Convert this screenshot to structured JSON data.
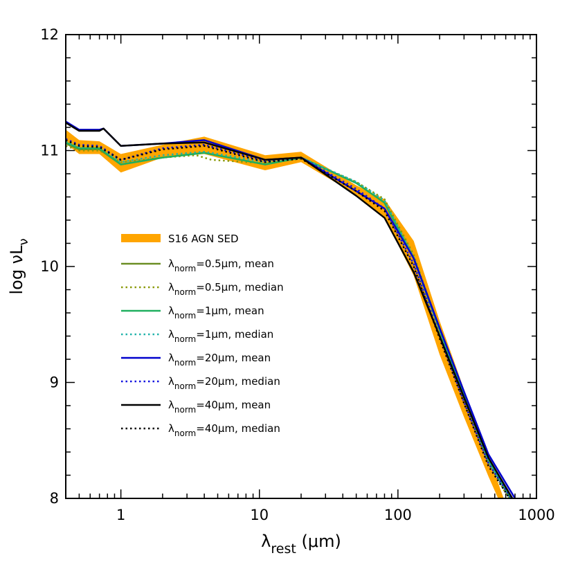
{
  "chart_data": {
    "type": "line",
    "xscale": "log",
    "xlim": [
      0.4,
      1000
    ],
    "ylim": [
      8,
      12
    ],
    "x_ticks": [
      {
        "value": 1,
        "label": "1"
      },
      {
        "value": 10,
        "label": "10"
      },
      {
        "value": 100,
        "label": "100"
      },
      {
        "value": 1000,
        "label": "1000"
      }
    ],
    "y_ticks": [
      {
        "value": 8,
        "label": "8"
      },
      {
        "value": 9,
        "label": "9"
      },
      {
        "value": 10,
        "label": "10"
      },
      {
        "value": 11,
        "label": "11"
      },
      {
        "value": 12,
        "label": "12"
      }
    ],
    "xlabel": {
      "main": "λ",
      "sub": "rest",
      "unit": " (μm)"
    },
    "ylabel": {
      "main": "log νL",
      "sub": "ν"
    },
    "legend_position": "center-left",
    "band": {
      "name": "S16 AGN SED",
      "color": "#FFA500",
      "x": [
        0.4,
        0.5,
        0.7,
        1.0,
        2.0,
        4.0,
        11.0,
        20.0,
        50.0,
        80.0,
        130.0,
        200.0,
        300.0,
        450.0,
        600.0
      ],
      "upper": [
        11.18,
        11.09,
        11.08,
        10.97,
        11.05,
        11.12,
        10.96,
        10.99,
        10.7,
        10.58,
        10.22,
        9.53,
        8.94,
        8.37,
        7.95
      ],
      "lower": [
        11.06,
        10.97,
        10.97,
        10.81,
        10.94,
        10.97,
        10.83,
        10.9,
        10.62,
        10.42,
        9.92,
        9.24,
        8.7,
        8.19,
        7.85
      ]
    },
    "series": [
      {
        "name": "λnorm=0.5μm, mean",
        "label_lambda": "λ",
        "label_sub": "norm",
        "label_rest": "=0.5μm, mean",
        "color": "#6B8E23",
        "dash": "solid",
        "x": [
          0.4,
          0.5,
          0.7,
          1.0,
          2.0,
          4.0,
          11.0,
          20.0,
          50.0,
          80.0,
          130.0,
          200.0,
          300.0,
          450.0,
          650.0
        ],
        "y": [
          11.06,
          11.01,
          11.01,
          10.88,
          10.94,
          10.98,
          10.88,
          10.94,
          10.72,
          10.55,
          10.07,
          9.45,
          8.88,
          8.33,
          8.0
        ]
      },
      {
        "name": "λnorm=0.5μm, median",
        "label_lambda": "λ",
        "label_sub": "norm",
        "label_rest": "=0.5μm, median",
        "color": "#8B9A0A",
        "dash": "dot",
        "x": [
          0.4,
          0.5,
          0.7,
          1.0,
          2.0,
          3.5,
          4.5,
          11.0,
          20.0,
          50.0,
          80.0,
          130.0,
          200.0,
          300.0,
          450.0,
          630.0
        ],
        "y": [
          11.04,
          11.0,
          11.0,
          10.9,
          10.94,
          10.96,
          10.92,
          10.89,
          10.93,
          10.73,
          10.58,
          10.1,
          9.45,
          8.86,
          8.31,
          8.0
        ]
      },
      {
        "name": "λnorm=1μm, mean",
        "label_lambda": "λ",
        "label_sub": "norm",
        "label_rest": "=1μm, mean",
        "color": "#1FAF5F",
        "dash": "solid",
        "x": [
          0.4,
          0.5,
          0.7,
          1.0,
          2.0,
          4.0,
          11.0,
          20.0,
          50.0,
          80.0,
          130.0,
          200.0,
          300.0,
          450.0,
          650.0
        ],
        "y": [
          11.07,
          11.02,
          11.02,
          10.88,
          10.94,
          10.98,
          10.88,
          10.94,
          10.72,
          10.55,
          10.07,
          9.45,
          8.88,
          8.33,
          8.0
        ]
      },
      {
        "name": "λnorm=1μm, median",
        "label_lambda": "λ",
        "label_sub": "norm",
        "label_rest": "=1μm, median",
        "color": "#20B2AA",
        "dash": "dot",
        "x": [
          0.4,
          0.5,
          0.7,
          1.0,
          2.0,
          4.0,
          11.0,
          20.0,
          50.0,
          80.0,
          130.0,
          200.0,
          300.0,
          450.0,
          640.0
        ],
        "y": [
          11.08,
          11.03,
          11.03,
          10.9,
          10.96,
          10.99,
          10.9,
          10.94,
          10.73,
          10.57,
          10.08,
          9.45,
          8.87,
          8.32,
          8.0
        ]
      },
      {
        "name": "λnorm=20μm, mean",
        "label_lambda": "λ",
        "label_sub": "norm",
        "label_rest": "=20μm, mean",
        "color": "#0000CD",
        "dash": "solid",
        "x": [
          0.4,
          0.5,
          0.7,
          0.75,
          1.0,
          2.0,
          4.0,
          11.0,
          20.0,
          50.0,
          80.0,
          130.0,
          200.0,
          300.0,
          450.0,
          700.0
        ],
        "y": [
          11.25,
          11.18,
          11.18,
          11.19,
          11.04,
          11.06,
          11.09,
          10.92,
          10.94,
          10.65,
          10.5,
          10.07,
          9.47,
          8.92,
          8.38,
          8.0
        ]
      },
      {
        "name": "λnorm=20μm, median",
        "label_lambda": "λ",
        "label_sub": "norm",
        "label_rest": "=20μm, median",
        "color": "#1010E0",
        "dash": "dot",
        "x": [
          0.4,
          0.5,
          0.7,
          1.0,
          2.0,
          4.0,
          11.0,
          20.0,
          50.0,
          80.0,
          130.0,
          200.0,
          300.0,
          450.0,
          660.0
        ],
        "y": [
          11.1,
          11.05,
          11.04,
          10.92,
          11.02,
          11.05,
          10.91,
          10.94,
          10.67,
          10.5,
          10.02,
          9.4,
          8.83,
          8.3,
          8.0
        ]
      },
      {
        "name": "λnorm=40μm, mean",
        "label_lambda": "λ",
        "label_sub": "norm",
        "label_rest": "=40μm, mean",
        "color": "#000000",
        "dash": "solid",
        "x": [
          0.4,
          0.5,
          0.7,
          0.75,
          1.0,
          2.0,
          4.0,
          11.0,
          20.0,
          50.0,
          80.0,
          130.0,
          200.0,
          300.0,
          450.0,
          670.0
        ],
        "y": [
          11.24,
          11.17,
          11.17,
          11.19,
          11.04,
          11.06,
          11.07,
          10.92,
          10.94,
          10.61,
          10.42,
          9.95,
          9.4,
          8.87,
          8.35,
          8.0
        ]
      },
      {
        "name": "λnorm=40μm, median",
        "label_lambda": "λ",
        "label_sub": "norm",
        "label_rest": "=40μm, median",
        "color": "#000000",
        "dash": "dot",
        "x": [
          0.4,
          0.5,
          0.7,
          1.0,
          2.0,
          4.0,
          11.0,
          20.0,
          50.0,
          80.0,
          130.0,
          200.0,
          300.0,
          450.0,
          640.0
        ],
        "y": [
          11.09,
          11.04,
          11.03,
          10.92,
          11.01,
          11.04,
          10.9,
          10.93,
          10.65,
          10.48,
          10.0,
          9.38,
          8.82,
          8.28,
          8.0
        ]
      }
    ]
  }
}
